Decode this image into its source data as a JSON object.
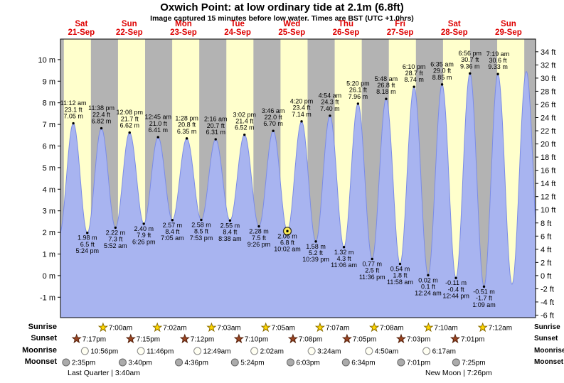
{
  "title": "Oxwich Point: at low ordinary tide at 2.1m (6.8ft)",
  "subtitle": "Image captured 15 minutes before low water. Times are BST (UTC +1.0hrs)",
  "colors": {
    "background": "#ffffff",
    "day_band": "#ffffcc",
    "night_band": "#b3b3b3",
    "tide_fill": "#a8b4f0",
    "tide_stroke": "#7b8ce6",
    "day_label": "#dd0000",
    "axis_text": "#000000",
    "annotation_text": "#000000",
    "current_marker_fill": "#ffee55",
    "current_marker_ring": "#333333",
    "sunrise_star_fill": "#ffd700",
    "sunrise_star_stroke": "#8a6d00",
    "sunset_star_fill": "#994422",
    "sunset_star_stroke": "#55200a",
    "moonrise_fill": "#fffff2",
    "moonrise_stroke": "#888888",
    "moonset_fill": "#ababab",
    "moonset_stroke": "#666666"
  },
  "days": [
    {
      "name": "Sat",
      "date": "21-Sep"
    },
    {
      "name": "Sun",
      "date": "22-Sep"
    },
    {
      "name": "Mon",
      "date": "23-Sep"
    },
    {
      "name": "Tue",
      "date": "24-Sep"
    },
    {
      "name": "Wed",
      "date": "25-Sep"
    },
    {
      "name": "Thu",
      "date": "26-Sep"
    },
    {
      "name": "Fri",
      "date": "27-Sep"
    },
    {
      "name": "Sat",
      "date": "28-Sep"
    },
    {
      "name": "Sun",
      "date": "29-Sep"
    }
  ],
  "chart_data": {
    "type": "area",
    "title": "Tide height over time for Oxwich Point, 21-Sep to 29-Sep",
    "y_axis_left": {
      "unit": "m",
      "ticks": [
        10,
        9,
        8,
        7,
        6,
        5,
        4,
        3,
        2,
        1,
        0,
        -1
      ]
    },
    "y_axis_right": {
      "unit": "ft",
      "ticks": [
        34,
        32,
        30,
        28,
        26,
        24,
        22,
        20,
        18,
        16,
        14,
        12,
        10,
        8,
        6,
        4,
        2,
        0,
        -2,
        -4,
        -6
      ]
    },
    "tide_events": [
      {
        "day": 0,
        "time": "11:12 am",
        "type": "high",
        "height_m": 7.05,
        "height_ft": 23.1
      },
      {
        "day": 0,
        "time": "5:24 pm",
        "type": "low",
        "height_m": 1.98,
        "height_ft": 6.5
      },
      {
        "day": 0,
        "time": "11:38 pm",
        "type": "high",
        "height_m": 6.82,
        "height_ft": 22.4
      },
      {
        "day": 1,
        "time": "5:52 am",
        "type": "low",
        "height_m": 2.22,
        "height_ft": 7.3
      },
      {
        "day": 1,
        "time": "12:08 pm",
        "type": "high",
        "height_m": 6.62,
        "height_ft": 21.7
      },
      {
        "day": 1,
        "time": "6:26 pm",
        "type": "low",
        "height_m": 2.4,
        "height_ft": 7.9
      },
      {
        "day": 2,
        "time": "12:45 am",
        "type": "high",
        "height_m": 6.41,
        "height_ft": 21.0
      },
      {
        "day": 2,
        "time": "7:05 am",
        "type": "low",
        "height_m": 2.57,
        "height_ft": 8.4
      },
      {
        "day": 2,
        "time": "1:28 pm",
        "type": "high",
        "height_m": 6.35,
        "height_ft": 20.8
      },
      {
        "day": 2,
        "time": "7:53 pm",
        "type": "low",
        "height_m": 2.58,
        "height_ft": 8.5
      },
      {
        "day": 3,
        "time": "2:16 am",
        "type": "high",
        "height_m": 6.31,
        "height_ft": 20.7
      },
      {
        "day": 3,
        "time": "8:38 am",
        "type": "low",
        "height_m": 2.55,
        "height_ft": 8.4
      },
      {
        "day": 3,
        "time": "3:02 pm",
        "type": "high",
        "height_m": 6.52,
        "height_ft": 21.4
      },
      {
        "day": 3,
        "time": "9:26 pm",
        "type": "low",
        "height_m": 2.28,
        "height_ft": 7.5
      },
      {
        "day": 4,
        "time": "3:46 am",
        "type": "high",
        "height_m": 6.7,
        "height_ft": 22.0
      },
      {
        "day": 4,
        "time": "10:02 am",
        "type": "low",
        "height_m": 2.06,
        "height_ft": 6.8,
        "current": true
      },
      {
        "day": 4,
        "time": "4:20 pm",
        "type": "high",
        "height_m": 7.14,
        "height_ft": 23.4
      },
      {
        "day": 4,
        "time": "10:39 pm",
        "type": "low",
        "height_m": 1.58,
        "height_ft": 5.2
      },
      {
        "day": 5,
        "time": "4:54 am",
        "type": "high",
        "height_m": 7.4,
        "height_ft": 24.3
      },
      {
        "day": 5,
        "time": "11:06 am",
        "type": "low",
        "height_m": 1.32,
        "height_ft": 4.3
      },
      {
        "day": 5,
        "time": "5:20 pm",
        "type": "high",
        "height_m": 7.96,
        "height_ft": 26.1
      },
      {
        "day": 5,
        "time": "11:36 pm",
        "type": "low",
        "height_m": 0.77,
        "height_ft": 2.5
      },
      {
        "day": 6,
        "time": "5:48 am",
        "type": "high",
        "height_m": 8.18,
        "height_ft": 26.8
      },
      {
        "day": 6,
        "time": "11:58 am",
        "type": "low",
        "height_m": 0.54,
        "height_ft": 1.8
      },
      {
        "day": 6,
        "time": "6:10 pm",
        "type": "high",
        "height_m": 8.74,
        "height_ft": 28.7
      },
      {
        "day": 7,
        "time": "12:24 am",
        "type": "low",
        "height_m": 0.02,
        "height_ft": 0.1
      },
      {
        "day": 7,
        "time": "6:35 am",
        "type": "high",
        "height_m": 8.85,
        "height_ft": 29.0
      },
      {
        "day": 7,
        "time": "12:44 pm",
        "type": "low",
        "height_m": -0.11,
        "height_ft": -0.4
      },
      {
        "day": 7,
        "time": "6:56 pm",
        "type": "high",
        "height_m": 9.36,
        "height_ft": 30.7
      },
      {
        "day": 8,
        "time": "1:09 am",
        "type": "low",
        "height_m": -0.51,
        "height_ft": -1.7
      },
      {
        "day": 8,
        "time": "7:19 am",
        "type": "high",
        "height_m": 9.33,
        "height_ft": 30.6
      }
    ],
    "curve_edge_extremes_estimated": [
      {
        "day": 0,
        "time": "5:00 am",
        "type": "low",
        "height_m": 1.9
      },
      {
        "day": 8,
        "time": "1:35 pm",
        "type": "low",
        "height_m": -0.4
      },
      {
        "day": 8,
        "time": "7:55 pm",
        "type": "high",
        "height_m": 9.45
      },
      {
        "day": 9,
        "time": "2:15 am",
        "type": "low",
        "height_m": -0.45
      }
    ]
  },
  "sun_moon": {
    "rows": [
      {
        "label": "Sunrise",
        "icon": "sunrise-star",
        "events": [
          {
            "day": 1,
            "time": "7:00am"
          },
          {
            "day": 2,
            "time": "7:02am"
          },
          {
            "day": 3,
            "time": "7:03am"
          },
          {
            "day": 4,
            "time": "7:05am"
          },
          {
            "day": 5,
            "time": "7:07am"
          },
          {
            "day": 6,
            "time": "7:08am"
          },
          {
            "day": 7,
            "time": "7:10am"
          },
          {
            "day": 8,
            "time": "7:12am"
          }
        ]
      },
      {
        "label": "Sunset",
        "icon": "sunset-star",
        "events": [
          {
            "day": 0,
            "time": "7:17pm"
          },
          {
            "day": 1,
            "time": "7:15pm"
          },
          {
            "day": 2,
            "time": "7:12pm"
          },
          {
            "day": 3,
            "time": "7:10pm"
          },
          {
            "day": 4,
            "time": "7:08pm"
          },
          {
            "day": 5,
            "time": "7:05pm"
          },
          {
            "day": 6,
            "time": "7:03pm"
          },
          {
            "day": 7,
            "time": "7:01pm"
          }
        ]
      },
      {
        "label": "Moonrise",
        "icon": "moonrise-moon",
        "events": [
          {
            "day": 0,
            "time": "10:56pm"
          },
          {
            "day": 1,
            "time": "11:46pm"
          },
          {
            "day": 3,
            "time": "12:49am"
          },
          {
            "day": 4,
            "time": "2:02am"
          },
          {
            "day": 5,
            "time": "3:24am"
          },
          {
            "day": 6,
            "time": "4:50am"
          },
          {
            "day": 7,
            "time": "6:17am"
          }
        ]
      },
      {
        "label": "Moonset",
        "icon": "moonset-moon",
        "events": [
          {
            "day": 0,
            "time": "2:35pm"
          },
          {
            "day": 1,
            "time": "3:40pm"
          },
          {
            "day": 2,
            "time": "4:36pm"
          },
          {
            "day": 3,
            "time": "5:24pm"
          },
          {
            "day": 4,
            "time": "6:03pm"
          },
          {
            "day": 5,
            "time": "6:34pm"
          },
          {
            "day": 6,
            "time": "7:01pm"
          },
          {
            "day": 7,
            "time": "7:25pm"
          }
        ]
      }
    ],
    "notes": [
      {
        "text": "Last Quarter | 3:40am"
      },
      {
        "text": "New Moon | 7:26pm"
      }
    ]
  }
}
